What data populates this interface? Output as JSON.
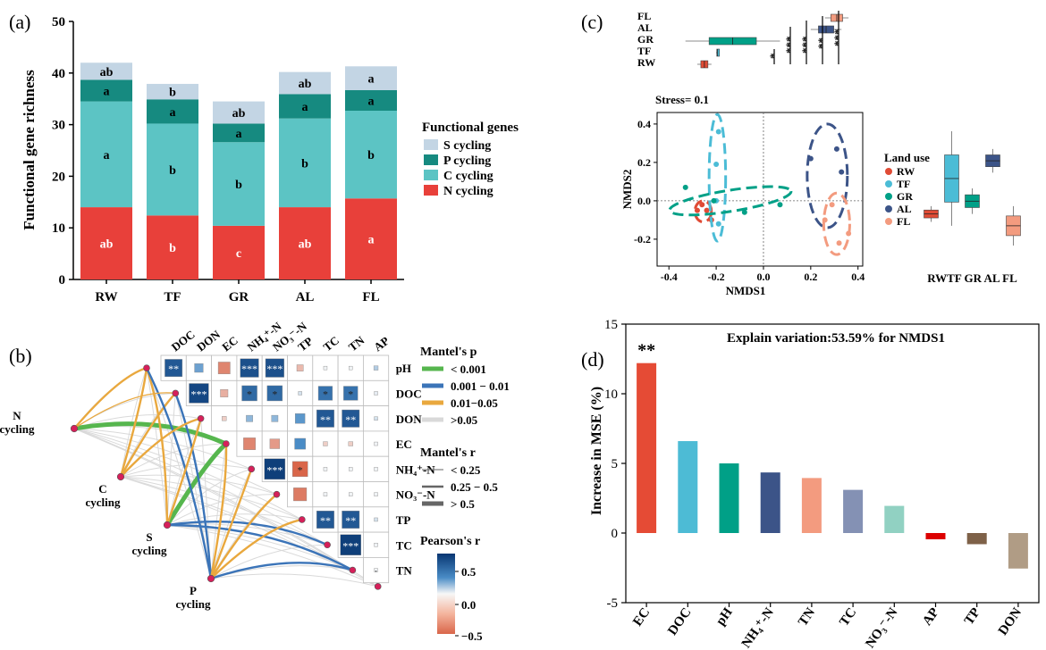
{
  "panels": {
    "a": {
      "label": "(a)",
      "chart_data": {
        "type": "bar",
        "stacked": true,
        "categories": [
          "RW",
          "TF",
          "GR",
          "AL",
          "FL"
        ],
        "ylabel": "Functional gene richness",
        "ylim": [
          0,
          50
        ],
        "yticks": [
          0,
          10,
          20,
          30,
          40,
          50
        ],
        "legend_title": "Functional genes",
        "series": [
          {
            "name": "N cycling",
            "color": "#e8403a",
            "values": [
              14,
              12.4,
              10.4,
              14,
              15.7
            ],
            "letters": [
              "ab",
              "b",
              "c",
              "ab",
              "a"
            ]
          },
          {
            "name": "C cycling",
            "color": "#5cc4c4",
            "values": [
              20.5,
              17.8,
              16.2,
              17.2,
              17
            ]
          },
          {
            "name": "P cycling",
            "color": "#168a80",
            "values": [
              4.2,
              4.7,
              3.6,
              4.7,
              4
            ],
            "letters": [
              "a",
              "a",
              "a",
              "a",
              "a"
            ]
          },
          {
            "name": "S cycling",
            "color": "#c3d5e4",
            "values": [
              3.3,
              3,
              4.3,
              4.3,
              4.6
            ],
            "letters": [
              "ab",
              "b",
              "ab",
              "ab",
              "a"
            ]
          }
        ],
        "c_letters": [
          "a",
          "b",
          "b",
          "b",
          "b"
        ],
        "legend_order": [
          "S cycling",
          "P cycling",
          "C cycling",
          "N cycling"
        ]
      }
    },
    "b": {
      "label": "(b)",
      "chart_data": {
        "type": "heatmap",
        "variables": [
          "pH",
          "DOC",
          "DON",
          "EC",
          "NH4+-N",
          "NO3--N",
          "TP",
          "TC",
          "TN",
          "AP"
        ],
        "top_labels": [
          "DOC",
          "DON",
          "EC",
          "NH₄⁺-N",
          "NO₃⁻-N",
          "TP",
          "TC",
          "TN",
          "AP"
        ],
        "row_labels": [
          "pH",
          "DOC",
          "DON",
          "EC",
          "NH₄⁺-N",
          "NO₃⁻-N",
          "TP",
          "TC",
          "TN"
        ],
        "cells": [
          [
            {
              "v": 0.8,
              "s": "**"
            },
            {
              "v": 0.4,
              "s": ""
            },
            {
              "v": -0.55,
              "s": ""
            },
            {
              "v": 0.85,
              "s": "***"
            },
            {
              "v": 0.85,
              "s": "***"
            },
            {
              "v": -0.3,
              "s": ""
            },
            {
              "v": 0.02,
              "s": ""
            },
            {
              "v": 0.02,
              "s": ""
            },
            {
              "v": 0.2,
              "s": ""
            }
          ],
          [
            {
              "v": 0.9,
              "s": "***"
            },
            {
              "v": -0.35,
              "s": ""
            },
            {
              "v": 0.7,
              "s": "*"
            },
            {
              "v": 0.7,
              "s": "*"
            },
            {
              "v": 0.1,
              "s": ""
            },
            {
              "v": 0.65,
              "s": "*"
            },
            {
              "v": 0.65,
              "s": "*"
            },
            {
              "v": 0.05,
              "s": ""
            }
          ],
          [
            {
              "v": -0.2,
              "s": ""
            },
            {
              "v": 0.3,
              "s": ""
            },
            {
              "v": 0.3,
              "s": ""
            },
            {
              "v": 0.45,
              "s": ""
            },
            {
              "v": 0.8,
              "s": "**"
            },
            {
              "v": 0.8,
              "s": "**"
            },
            {
              "v": 0.1,
              "s": ""
            }
          ],
          [
            {
              "v": -0.55,
              "s": ""
            },
            {
              "v": -0.45,
              "s": ""
            },
            {
              "v": 0.5,
              "s": ""
            },
            {
              "v": -0.2,
              "s": ""
            },
            {
              "v": -0.2,
              "s": ""
            },
            {
              "v": 0.02,
              "s": ""
            }
          ],
          [
            {
              "v": 0.95,
              "s": "***"
            },
            {
              "v": -0.7,
              "s": "*"
            },
            {
              "v": 0.02,
              "s": ""
            },
            {
              "v": 0.02,
              "s": ""
            },
            {
              "v": 0.02,
              "s": ""
            }
          ],
          [
            {
              "v": -0.6,
              "s": ""
            },
            {
              "v": 0.02,
              "s": ""
            },
            {
              "v": 0.02,
              "s": ""
            },
            {
              "v": 0.02,
              "s": ""
            }
          ],
          [
            {
              "v": 0.8,
              "s": "**"
            },
            {
              "v": 0.8,
              "s": "**"
            },
            {
              "v": 0.1,
              "s": ""
            }
          ],
          [
            {
              "v": 0.95,
              "s": "***"
            },
            {
              "v": 0.02,
              "s": ""
            }
          ],
          [
            {
              "v": 0.02,
              "s": "·"
            }
          ]
        ],
        "nodes": [
          "N cycling",
          "C cycling",
          "S cycling",
          "P cycling"
        ],
        "node_lines": [
          [
            "N",
            "cycling"
          ],
          [
            "C",
            "cycling"
          ],
          [
            "S",
            "cycling"
          ],
          [
            "P",
            "cycling"
          ]
        ],
        "mantel_p_title": "Mantel's p",
        "mantel_p_legend": [
          {
            "label": "< 0.001",
            "color": "#56b64e"
          },
          {
            "label": "0.001 − 0.01",
            "color": "#3b74b8"
          },
          {
            "label": "0.01−0.05",
            "color": "#e9a83e"
          },
          {
            "label": ">0.05",
            "color": "#d9d9d9"
          }
        ],
        "mantel_r_title": "Mantel's r",
        "mantel_r_legend": [
          "< 0.25",
          "0.25 − 0.5",
          "> 0.5"
        ],
        "pearson_title": "Pearson's r",
        "pearson_ticks": [
          "0.5",
          "0.0",
          "−0.5"
        ],
        "links": [
          {
            "from": "N cycling",
            "to": "EC",
            "p": "<0.001",
            "r": ">0.5"
          },
          {
            "from": "S cycling",
            "to": "EC",
            "p": "<0.001",
            "r": ">0.5"
          },
          {
            "from": "N cycling",
            "to": "pH",
            "p": "0.01-0.05",
            "r": "0.25-0.5"
          },
          {
            "from": "C cycling",
            "to": "pH",
            "p": "0.01-0.05",
            "r": "0.25-0.5"
          },
          {
            "from": "C cycling",
            "to": "DOC",
            "p": "0.01-0.05",
            "r": "0.25-0.5"
          },
          {
            "from": "S cycling",
            "to": "pH",
            "p": "0.01-0.05",
            "r": "0.25-0.5"
          },
          {
            "from": "S cycling",
            "to": "TC",
            "p": "0.001-0.01",
            "r": "0.25-0.5"
          },
          {
            "from": "S cycling",
            "to": "TN",
            "p": "0.001-0.01",
            "r": "0.25-0.5"
          },
          {
            "from": "P cycling",
            "to": "pH",
            "p": "0.001-0.01",
            "r": "0.25-0.5"
          },
          {
            "from": "P cycling",
            "to": "DOC",
            "p": "0.001-0.01",
            "r": "0.25-0.5"
          },
          {
            "from": "P cycling",
            "to": "TN",
            "p": "0.001-0.01",
            "r": "0.25-0.5"
          },
          {
            "from": "P cycling",
            "to": "EC",
            "p": "0.01-0.05",
            "r": "0.25-0.5"
          },
          {
            "from": "P cycling",
            "to": "NH4+-N",
            "p": "0.01-0.05",
            "r": "0.25-0.5"
          },
          {
            "from": "P cycling",
            "to": "NO3--N",
            "p": "0.01-0.05",
            "r": "0.25-0.5"
          },
          {
            "from": "P cycling",
            "to": "TP",
            "p": "0.01-0.05",
            "r": "0.25-0.5"
          },
          {
            "from": "C cycling",
            "to": "DON",
            "p": "0.01-0.05",
            "r": "0.25-0.5"
          },
          {
            "from": "S cycling",
            "to": "DON",
            "p": "0.01-0.05",
            "r": "0.25-0.5"
          },
          {
            "from": "N cycling",
            "to": "DOC",
            "p": "0.01-0.05",
            "r": "<0.25"
          }
        ]
      }
    },
    "c": {
      "label": "(c)",
      "chart_data": {
        "type": "scatter",
        "title": "Stress= 0.1",
        "xlabel": "NMDS1",
        "ylabel": "NMDS2",
        "xlim": [
          -0.45,
          0.42
        ],
        "ylim": [
          -0.34,
          0.46
        ],
        "xticks": [
          "-0.4",
          "-0.2",
          "0.0",
          "0.2",
          "0.4"
        ],
        "xtick_vals": [
          -0.4,
          -0.2,
          0,
          0.2,
          0.4
        ],
        "yticks": [
          "0.4",
          "0.2",
          "0.0",
          "-0.2"
        ],
        "ytick_vals": [
          0.4,
          0.2,
          0,
          -0.2
        ],
        "legend_title": "Land use",
        "groups": [
          {
            "name": "RW",
            "color": "#e04b35",
            "points": [
              [
                -0.28,
                -0.05
              ],
              [
                -0.26,
                -0.02
              ],
              [
                -0.24,
                -0.05
              ],
              [
                -0.22,
                -0.1
              ]
            ],
            "ellipse": {
              "cx": -0.255,
              "cy": -0.055,
              "rx": 0.035,
              "ry": 0.055,
              "rot": 0
            }
          },
          {
            "name": "TF",
            "color": "#4bbcd6",
            "points": [
              [
                -0.19,
                0.36
              ],
              [
                -0.2,
                0.19
              ],
              [
                -0.2,
                0.0
              ],
              [
                -0.19,
                -0.12
              ]
            ],
            "ellipse": {
              "cx": -0.195,
              "cy": 0.12,
              "rx": 0.035,
              "ry": 0.33,
              "rot": 0
            }
          },
          {
            "name": "GR",
            "color": "#00a087",
            "points": [
              [
                -0.33,
                0.07
              ],
              [
                -0.21,
                0.0
              ],
              [
                -0.08,
                -0.06
              ],
              [
                0.07,
                -0.02
              ]
            ],
            "ellipse": {
              "cx": -0.14,
              "cy": 0.0,
              "rx": 0.26,
              "ry": 0.055,
              "rot": -9
            }
          },
          {
            "name": "AL",
            "color": "#3c5488",
            "points": [
              [
                0.2,
                0.22
              ],
              [
                0.31,
                0.27
              ],
              [
                0.33,
                0.15
              ]
            ],
            "ellipse": {
              "cx": 0.27,
              "cy": 0.13,
              "rx": 0.085,
              "ry": 0.27,
              "rot": 0
            }
          },
          {
            "name": "FL",
            "color": "#f39b7f",
            "points": [
              [
                0.26,
                -0.1
              ],
              [
                0.29,
                -0.02
              ],
              [
                0.36,
                -0.17
              ],
              [
                0.32,
                -0.22
              ]
            ],
            "ellipse": {
              "cx": 0.31,
              "cy": -0.12,
              "rx": 0.055,
              "ry": 0.16,
              "rot": 0
            }
          }
        ],
        "top_box": {
          "order": [
            "FL",
            "AL",
            "GR",
            "TF",
            "RW"
          ],
          "stars": [
            "*",
            "***",
            "***",
            "**",
            "***"
          ]
        },
        "right_box": {
          "yticks": [
            "0.0",
            "-0.1",
            "-0.2",
            "-0.3"
          ],
          "labels": [
            "RW",
            "TF",
            "GR",
            "AL",
            "FL"
          ],
          "label_line": "RWTF GR AL FL"
        }
      }
    },
    "d": {
      "label": "(d)",
      "chart_data": {
        "type": "bar",
        "title": "Explain variation:53.59% for NMDS1",
        "ylabel": "Increase in MSE (%)",
        "ylim": [
          -5,
          15
        ],
        "yticks": [
          -5,
          0,
          5,
          10,
          15
        ],
        "categories": [
          "EC",
          "DOC",
          "pH",
          "NH₄⁺-N",
          "TN",
          "TC",
          "NO₃⁻-N",
          "AP",
          "TP",
          "DON"
        ],
        "values": [
          12.2,
          6.6,
          5.0,
          4.35,
          3.95,
          3.1,
          1.95,
          -0.45,
          -0.8,
          -2.55
        ],
        "colors": [
          "#e54b35",
          "#4dbbd5",
          "#00a087",
          "#3c5488",
          "#f39b7f",
          "#8491b4",
          "#91d1c2",
          "#dc0000",
          "#7e6148",
          "#b09c85"
        ],
        "annotations": [
          {
            "category": "EC",
            "text": "**"
          }
        ]
      }
    }
  }
}
